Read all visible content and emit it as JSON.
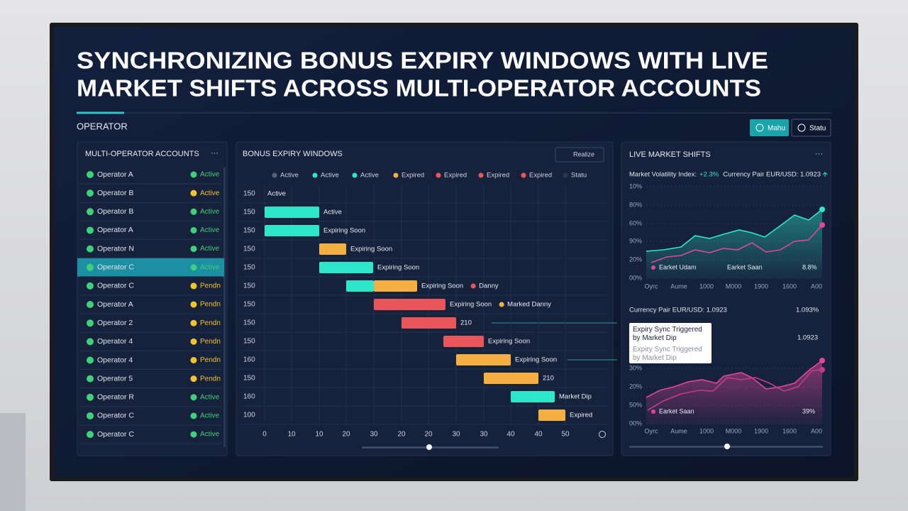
{
  "header": {
    "title_lines": [
      "SYNCHRONIZING BONUS EXPIRY WINDOWS WITH LIVE",
      "MARKET SHIFTS ACROSS MULTI-OPERATOR ACCOUNTS"
    ],
    "section": "OPERATOR",
    "buttons": [
      "Mahu",
      "Statu"
    ]
  },
  "accounts": {
    "title": "MULTI-OPERATOR ACCOUNTS",
    "menu": "···",
    "rows": [
      {
        "name": "Operator A",
        "status": "Active"
      },
      {
        "name": "Operator B",
        "status": "Active"
      },
      {
        "name": "Operator B",
        "status": "Active"
      },
      {
        "name": "Operator A",
        "status": "Active"
      },
      {
        "name": "Operator N",
        "status": "Active"
      },
      {
        "name": "Operator C",
        "status": "Active"
      },
      {
        "name": "Operator C",
        "status": "Pendn"
      },
      {
        "name": "Operator A",
        "status": "Pendn"
      },
      {
        "name": "Operator 2",
        "status": "Pendn"
      },
      {
        "name": "Operator 4",
        "status": "Pendn"
      },
      {
        "name": "Operator 4",
        "status": "Pendn"
      },
      {
        "name": "Operator 5",
        "status": "Pendn"
      },
      {
        "name": "Operator R",
        "status": "Active"
      },
      {
        "name": "Operator C",
        "status": "Active"
      },
      {
        "name": "Operator C",
        "status": "Active"
      }
    ]
  },
  "expiry": {
    "title": "BONUS EXPIRY WINDOWS",
    "button": "Realize",
    "legend": [
      "Active",
      "Active",
      "Active",
      "Expired",
      "Expired",
      "Expired",
      "Expired",
      "Statu"
    ],
    "rows": [
      {
        "label": 150,
        "text": "Active"
      },
      {
        "label": 150,
        "text": "Active"
      },
      {
        "label": 150,
        "text": "Expiring Soon"
      },
      {
        "label": 150,
        "text": "Expiring Soon"
      },
      {
        "label": 150,
        "text": "Expiring Soon"
      },
      {
        "label": 150,
        "text": "Expiring Soon",
        "extra": "Danny"
      },
      {
        "label": 150,
        "text": "Expiring Soon",
        "extra": "Marked Danny"
      },
      {
        "label": 150,
        "text": "210"
      },
      {
        "label": 150,
        "text": "Expiring Soon"
      },
      {
        "label": 160,
        "text": "Expiring Soon"
      },
      {
        "label": 150,
        "text": "210"
      },
      {
        "label": 160,
        "text": "Market Dip"
      },
      {
        "label": 100,
        "text": "Expired"
      }
    ],
    "axis": [
      0,
      10,
      10,
      20,
      30,
      20,
      20,
      30,
      30,
      40,
      40,
      50
    ]
  },
  "market": {
    "title": "LIVE MARKET SHIFTS",
    "menu": "···",
    "volatility_label": "Market Volatility Index:",
    "volatility_value": "+2.3%",
    "pair": "Currency Pair EUR/USD: 1.0923",
    "chart1": {
      "y_labels": [
        "10%",
        "80%",
        "60%",
        "90%",
        "20%",
        "00%"
      ],
      "x_labels": [
        "Oyrc",
        "Aume",
        "1000",
        "M000",
        "1900",
        "1600",
        "A00"
      ],
      "legend": [
        "Earket Udam",
        "Earket Saan",
        "8.8%"
      ]
    },
    "chart2": {
      "heading": "Currency Pair EUR/USD: 1.0923",
      "heading_value": "1.093%",
      "side_value": "1.0923",
      "tooltip": {
        "title": "Expiry Sync Triggered by Market Dip",
        "subtitle": "Expiry Sync Triggered by Market Dip"
      },
      "y_labels": [
        "30%",
        "20%",
        "50%",
        "00%"
      ],
      "x_labels": [
        "Oyrc",
        "Aume",
        "1000",
        "M000",
        "1900",
        "1600",
        "A00"
      ],
      "legend": [
        "Earket Saan",
        "39%"
      ]
    }
  }
}
